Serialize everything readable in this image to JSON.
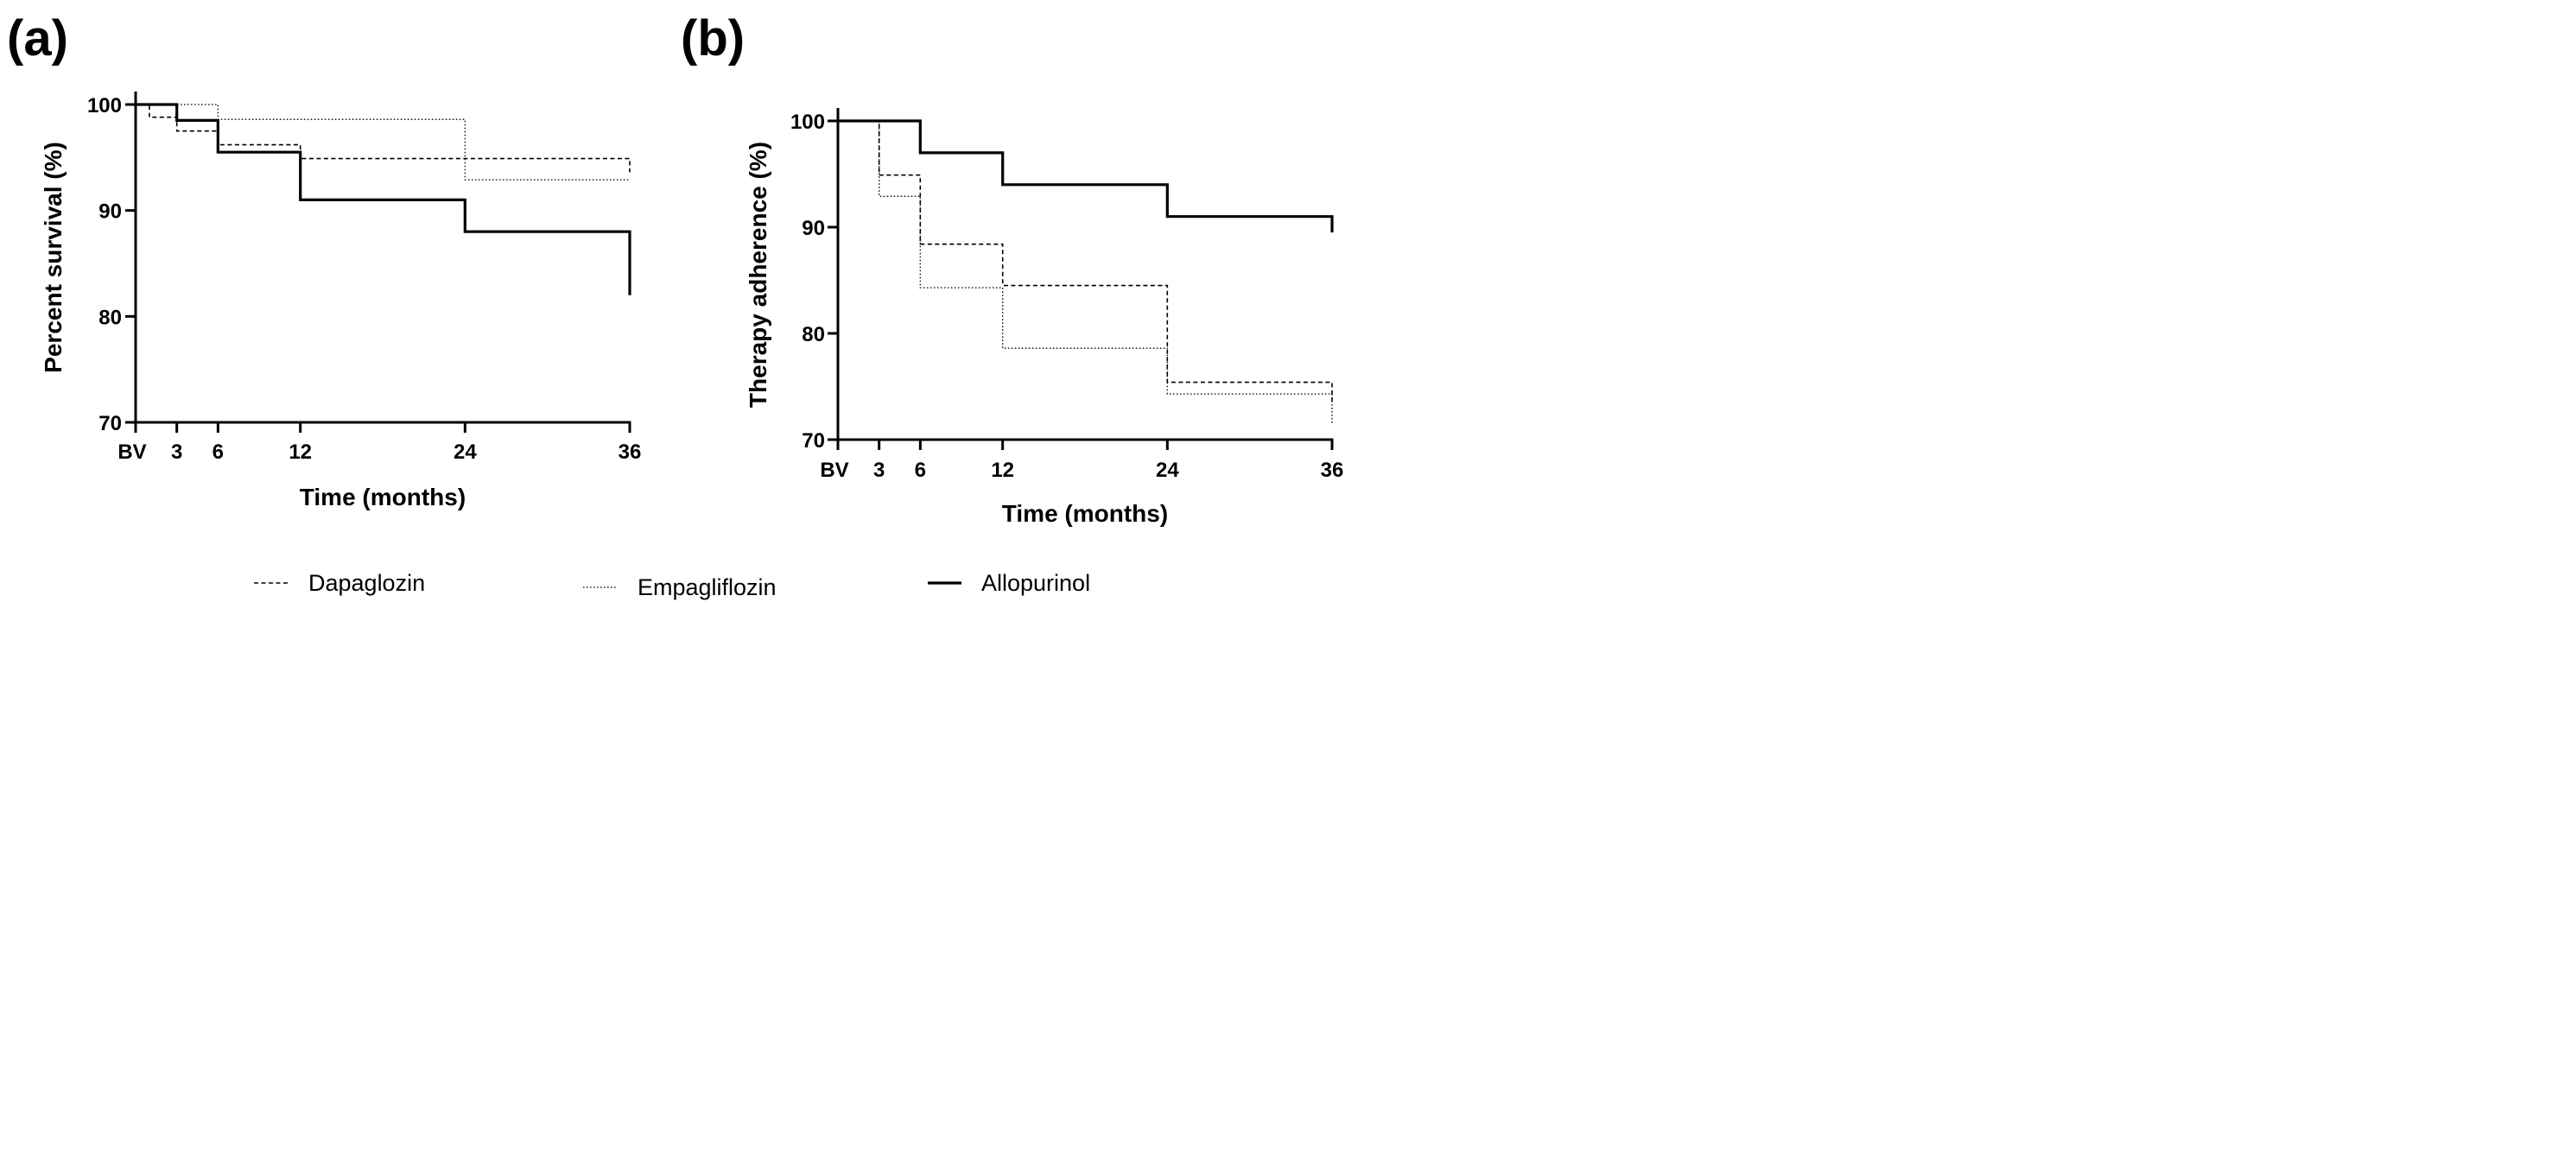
{
  "chart_data": [
    {
      "panel_label": "(a)",
      "type": "line",
      "step": true,
      "xlabel": "Time (months)",
      "ylabel": "Percent survival (%)",
      "x_ticks": [
        0,
        3,
        6,
        12,
        24,
        36
      ],
      "x_tick_labels": [
        "BV",
        "3",
        "6",
        "12",
        "24",
        "36"
      ],
      "y_ticks": [
        70,
        80,
        90,
        100
      ],
      "y_tick_labels": [
        "70",
        "80",
        "90",
        "100"
      ],
      "xlim": [
        0,
        36
      ],
      "ylim": [
        70,
        101
      ],
      "series": [
        {
          "name": "Dapaglozin",
          "x": [
            0,
            1,
            3,
            6,
            12,
            36,
            36
          ],
          "y": [
            100,
            98.8,
            97.5,
            96.2,
            94.9,
            94.9,
            93.6
          ]
        },
        {
          "name": "Empagliflozin",
          "x": [
            0,
            6,
            24,
            36,
            36
          ],
          "y": [
            100,
            98.6,
            92.9,
            92.9,
            92.9
          ]
        },
        {
          "name": "Allopurinol",
          "x": [
            0,
            3,
            6,
            12,
            24,
            36,
            36
          ],
          "y": [
            100,
            98.5,
            95.5,
            91.0,
            88.0,
            88.0,
            82.0
          ]
        }
      ]
    },
    {
      "panel_label": "(b)",
      "type": "line",
      "step": true,
      "xlabel": "Time (months)",
      "ylabel": "Therapy adherence (%)",
      "x_ticks": [
        0,
        3,
        6,
        12,
        24,
        36
      ],
      "x_tick_labels": [
        "BV",
        "3",
        "6",
        "12",
        "24",
        "36"
      ],
      "y_ticks": [
        70,
        80,
        90,
        100
      ],
      "y_tick_labels": [
        "70",
        "80",
        "90",
        "100"
      ],
      "xlim": [
        0,
        36
      ],
      "ylim": [
        70,
        101
      ],
      "series": [
        {
          "name": "Dapaglozin",
          "x": [
            0,
            3,
            6,
            12,
            24,
            36,
            36
          ],
          "y": [
            100,
            94.9,
            88.4,
            84.5,
            75.4,
            75.4,
            73.6
          ]
        },
        {
          "name": "Empagliflozin",
          "x": [
            0,
            3,
            6,
            12,
            24,
            36,
            36
          ],
          "y": [
            100,
            92.9,
            84.3,
            78.6,
            74.3,
            74.3,
            71.4
          ]
        },
        {
          "name": "Allopurinol",
          "x": [
            0,
            6,
            12,
            24,
            36,
            36
          ],
          "y": [
            100,
            97.0,
            94.0,
            91.0,
            91.0,
            89.5
          ]
        }
      ]
    }
  ],
  "legend": [
    {
      "name": "Dapaglozin",
      "style": "dashed"
    },
    {
      "name": "Empagliflozin",
      "style": "dotted"
    },
    {
      "name": "Allopurinol",
      "style": "solid"
    }
  ],
  "colors": {
    "line": "#000000",
    "background": "#ffffff"
  }
}
